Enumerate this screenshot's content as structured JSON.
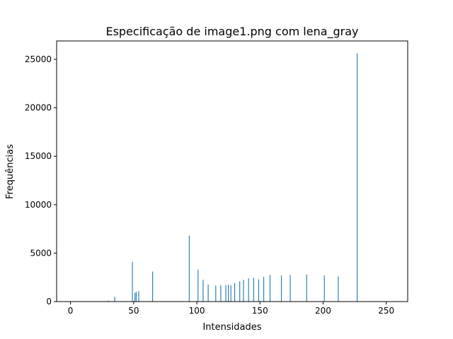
{
  "chart_data": {
    "type": "bar",
    "title": "Especificação de image1.png com lena_gray",
    "xlabel": "Intensidades",
    "ylabel": "Frequências",
    "xlim": [
      -11,
      267
    ],
    "ylim": [
      0,
      26900
    ],
    "xticks": [
      0,
      50,
      100,
      150,
      200,
      250
    ],
    "yticks": [
      0,
      5000,
      10000,
      15000,
      20000,
      25000
    ],
    "grid": false,
    "bar_color": "#1f77b4",
    "x": [
      30,
      35,
      49,
      51,
      52,
      54,
      65,
      94,
      101,
      105,
      109,
      115,
      119,
      123,
      125,
      127,
      130,
      134,
      137,
      141,
      145,
      149,
      153,
      158,
      167,
      174,
      187,
      201,
      212,
      227
    ],
    "values": [
      100,
      500,
      4100,
      900,
      1000,
      1100,
      3100,
      6800,
      3300,
      2250,
      1750,
      1650,
      1700,
      1700,
      1750,
      1700,
      1900,
      2100,
      2250,
      2400,
      2450,
      2300,
      2550,
      2750,
      2700,
      2750,
      2800,
      2700,
      2600,
      25600
    ]
  }
}
